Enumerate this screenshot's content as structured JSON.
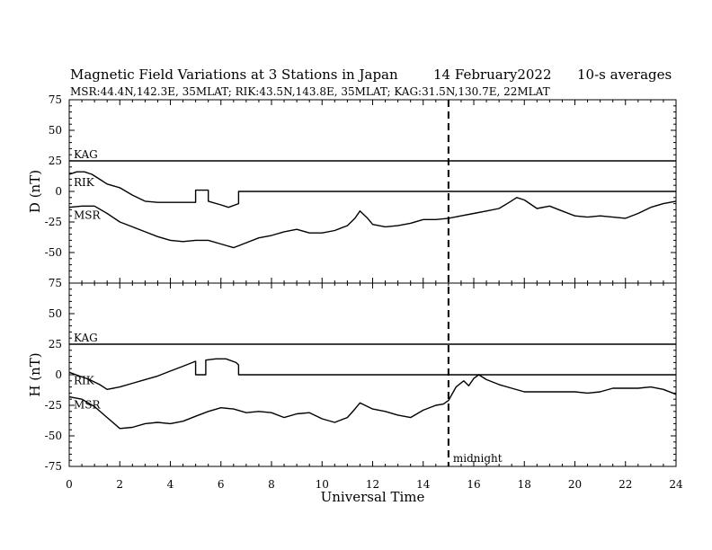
{
  "header": {
    "title": "Magnetic Field Variations at 3 Stations in Japan",
    "date": "14 February2022",
    "averaging": "10-s averages",
    "stations_line": "MSR:44.4N,142.3E, 35MLAT;  RIK:43.5N,143.8E, 35MLAT;  KAG:31.5N,130.7E, 22MLAT"
  },
  "chart_data": {
    "type": "line",
    "xlabel": "Universal Time",
    "xlim": [
      0,
      24
    ],
    "x_ticks": [
      0,
      2,
      4,
      6,
      8,
      10,
      12,
      14,
      16,
      18,
      20,
      22,
      24
    ],
    "annotation": {
      "x": 15,
      "label": "midnight",
      "style": "dashed"
    },
    "panels": [
      {
        "ylabel": "D (nT)",
        "ylim": [
          -75,
          75
        ],
        "y_ticks": [
          75,
          50,
          25,
          0,
          -25,
          -50,
          -75
        ],
        "series": [
          {
            "name": "KAG",
            "x": [
              0,
              24
            ],
            "y": [
              25,
              25
            ]
          },
          {
            "name": "RIK",
            "x": [
              0,
              0.3,
              0.6,
              0.9,
              1.2,
              1.5,
              2.0,
              2.5,
              3.0,
              3.5,
              4.0,
              4.5,
              5.0,
              5.0,
              5.5,
              5.5,
              6.0,
              6.3,
              6.7,
              6.7,
              24
            ],
            "y": [
              14,
              16,
              16,
              14,
              10,
              6,
              3,
              -3,
              -8,
              -9,
              -9,
              -9,
              -9,
              1,
              1,
              -8,
              -11,
              -13,
              -10,
              0,
              0
            ]
          },
          {
            "name": "MSR",
            "x": [
              0,
              0.5,
              1.0,
              1.5,
              2.0,
              2.5,
              3.0,
              3.5,
              4.0,
              4.5,
              5.0,
              5.5,
              6.0,
              6.5,
              7.0,
              7.5,
              8.0,
              8.5,
              9.0,
              9.5,
              10.0,
              10.5,
              11.0,
              11.3,
              11.5,
              11.8,
              12.0,
              12.5,
              13.0,
              13.5,
              14.0,
              14.5,
              15.0,
              15.5,
              16.0,
              16.5,
              17.0,
              17.4,
              17.7,
              18.0,
              18.5,
              19.0,
              19.5,
              20.0,
              20.5,
              21.0,
              21.5,
              22.0,
              22.5,
              23.0,
              23.5,
              24.0
            ],
            "y": [
              -13,
              -12,
              -12,
              -18,
              -25,
              -29,
              -33,
              -37,
              -40,
              -41,
              -40,
              -40,
              -43,
              -46,
              -42,
              -38,
              -36,
              -33,
              -31,
              -34,
              -34,
              -32,
              -28,
              -22,
              -16,
              -22,
              -27,
              -29,
              -28,
              -26,
              -23,
              -23,
              -22,
              -20,
              -18,
              -16,
              -14,
              -9,
              -5,
              -7,
              -14,
              -12,
              -16,
              -20,
              -21,
              -20,
              -21,
              -22,
              -18,
              -13,
              -10,
              -8
            ]
          }
        ]
      },
      {
        "ylabel": "H (nT)",
        "ylim": [
          -75,
          75
        ],
        "y_ticks": [
          75,
          50,
          25,
          0,
          -25,
          -50,
          -75
        ],
        "series": [
          {
            "name": "KAG",
            "x": [
              0,
              24
            ],
            "y": [
              25,
              25
            ]
          },
          {
            "name": "RIK",
            "x": [
              0,
              0.4,
              0.8,
              1.2,
              1.5,
              2.0,
              2.5,
              3.0,
              3.5,
              4.0,
              4.5,
              5.0,
              5.0,
              5.4,
              5.4,
              5.8,
              6.2,
              6.6,
              6.7,
              6.7,
              24
            ],
            "y": [
              2,
              -1,
              -4,
              -8,
              -12,
              -10,
              -7,
              -4,
              -1,
              3,
              7,
              11,
              0,
              0,
              12,
              13,
              13,
              10,
              8,
              0,
              0
            ]
          },
          {
            "name": "MSR",
            "x": [
              0,
              0.5,
              1.0,
              1.5,
              2.0,
              2.5,
              3.0,
              3.5,
              4.0,
              4.5,
              5.0,
              5.5,
              6.0,
              6.5,
              7.0,
              7.5,
              8.0,
              8.5,
              9.0,
              9.5,
              10.0,
              10.5,
              11.0,
              11.3,
              11.5,
              12.0,
              12.5,
              13.0,
              13.5,
              14.0,
              14.5,
              14.8,
              15.0,
              15.3,
              15.6,
              15.8,
              16.0,
              16.2,
              16.5,
              17.0,
              17.5,
              18.0,
              18.5,
              19.0,
              19.5,
              20.0,
              20.5,
              21.0,
              21.5,
              22.0,
              22.5,
              23.0,
              23.5,
              24.0
            ],
            "y": [
              -18,
              -20,
              -26,
              -35,
              -44,
              -43,
              -40,
              -39,
              -40,
              -38,
              -34,
              -30,
              -27,
              -28,
              -31,
              -30,
              -31,
              -35,
              -32,
              -31,
              -36,
              -39,
              -35,
              -28,
              -23,
              -28,
              -30,
              -33,
              -35,
              -29,
              -25,
              -24,
              -21,
              -10,
              -5,
              -9,
              -3,
              0,
              -4,
              -8,
              -11,
              -14,
              -14,
              -14,
              -14,
              -14,
              -15,
              -14,
              -11,
              -11,
              -11,
              -10,
              -12,
              -16
            ]
          }
        ]
      }
    ]
  }
}
